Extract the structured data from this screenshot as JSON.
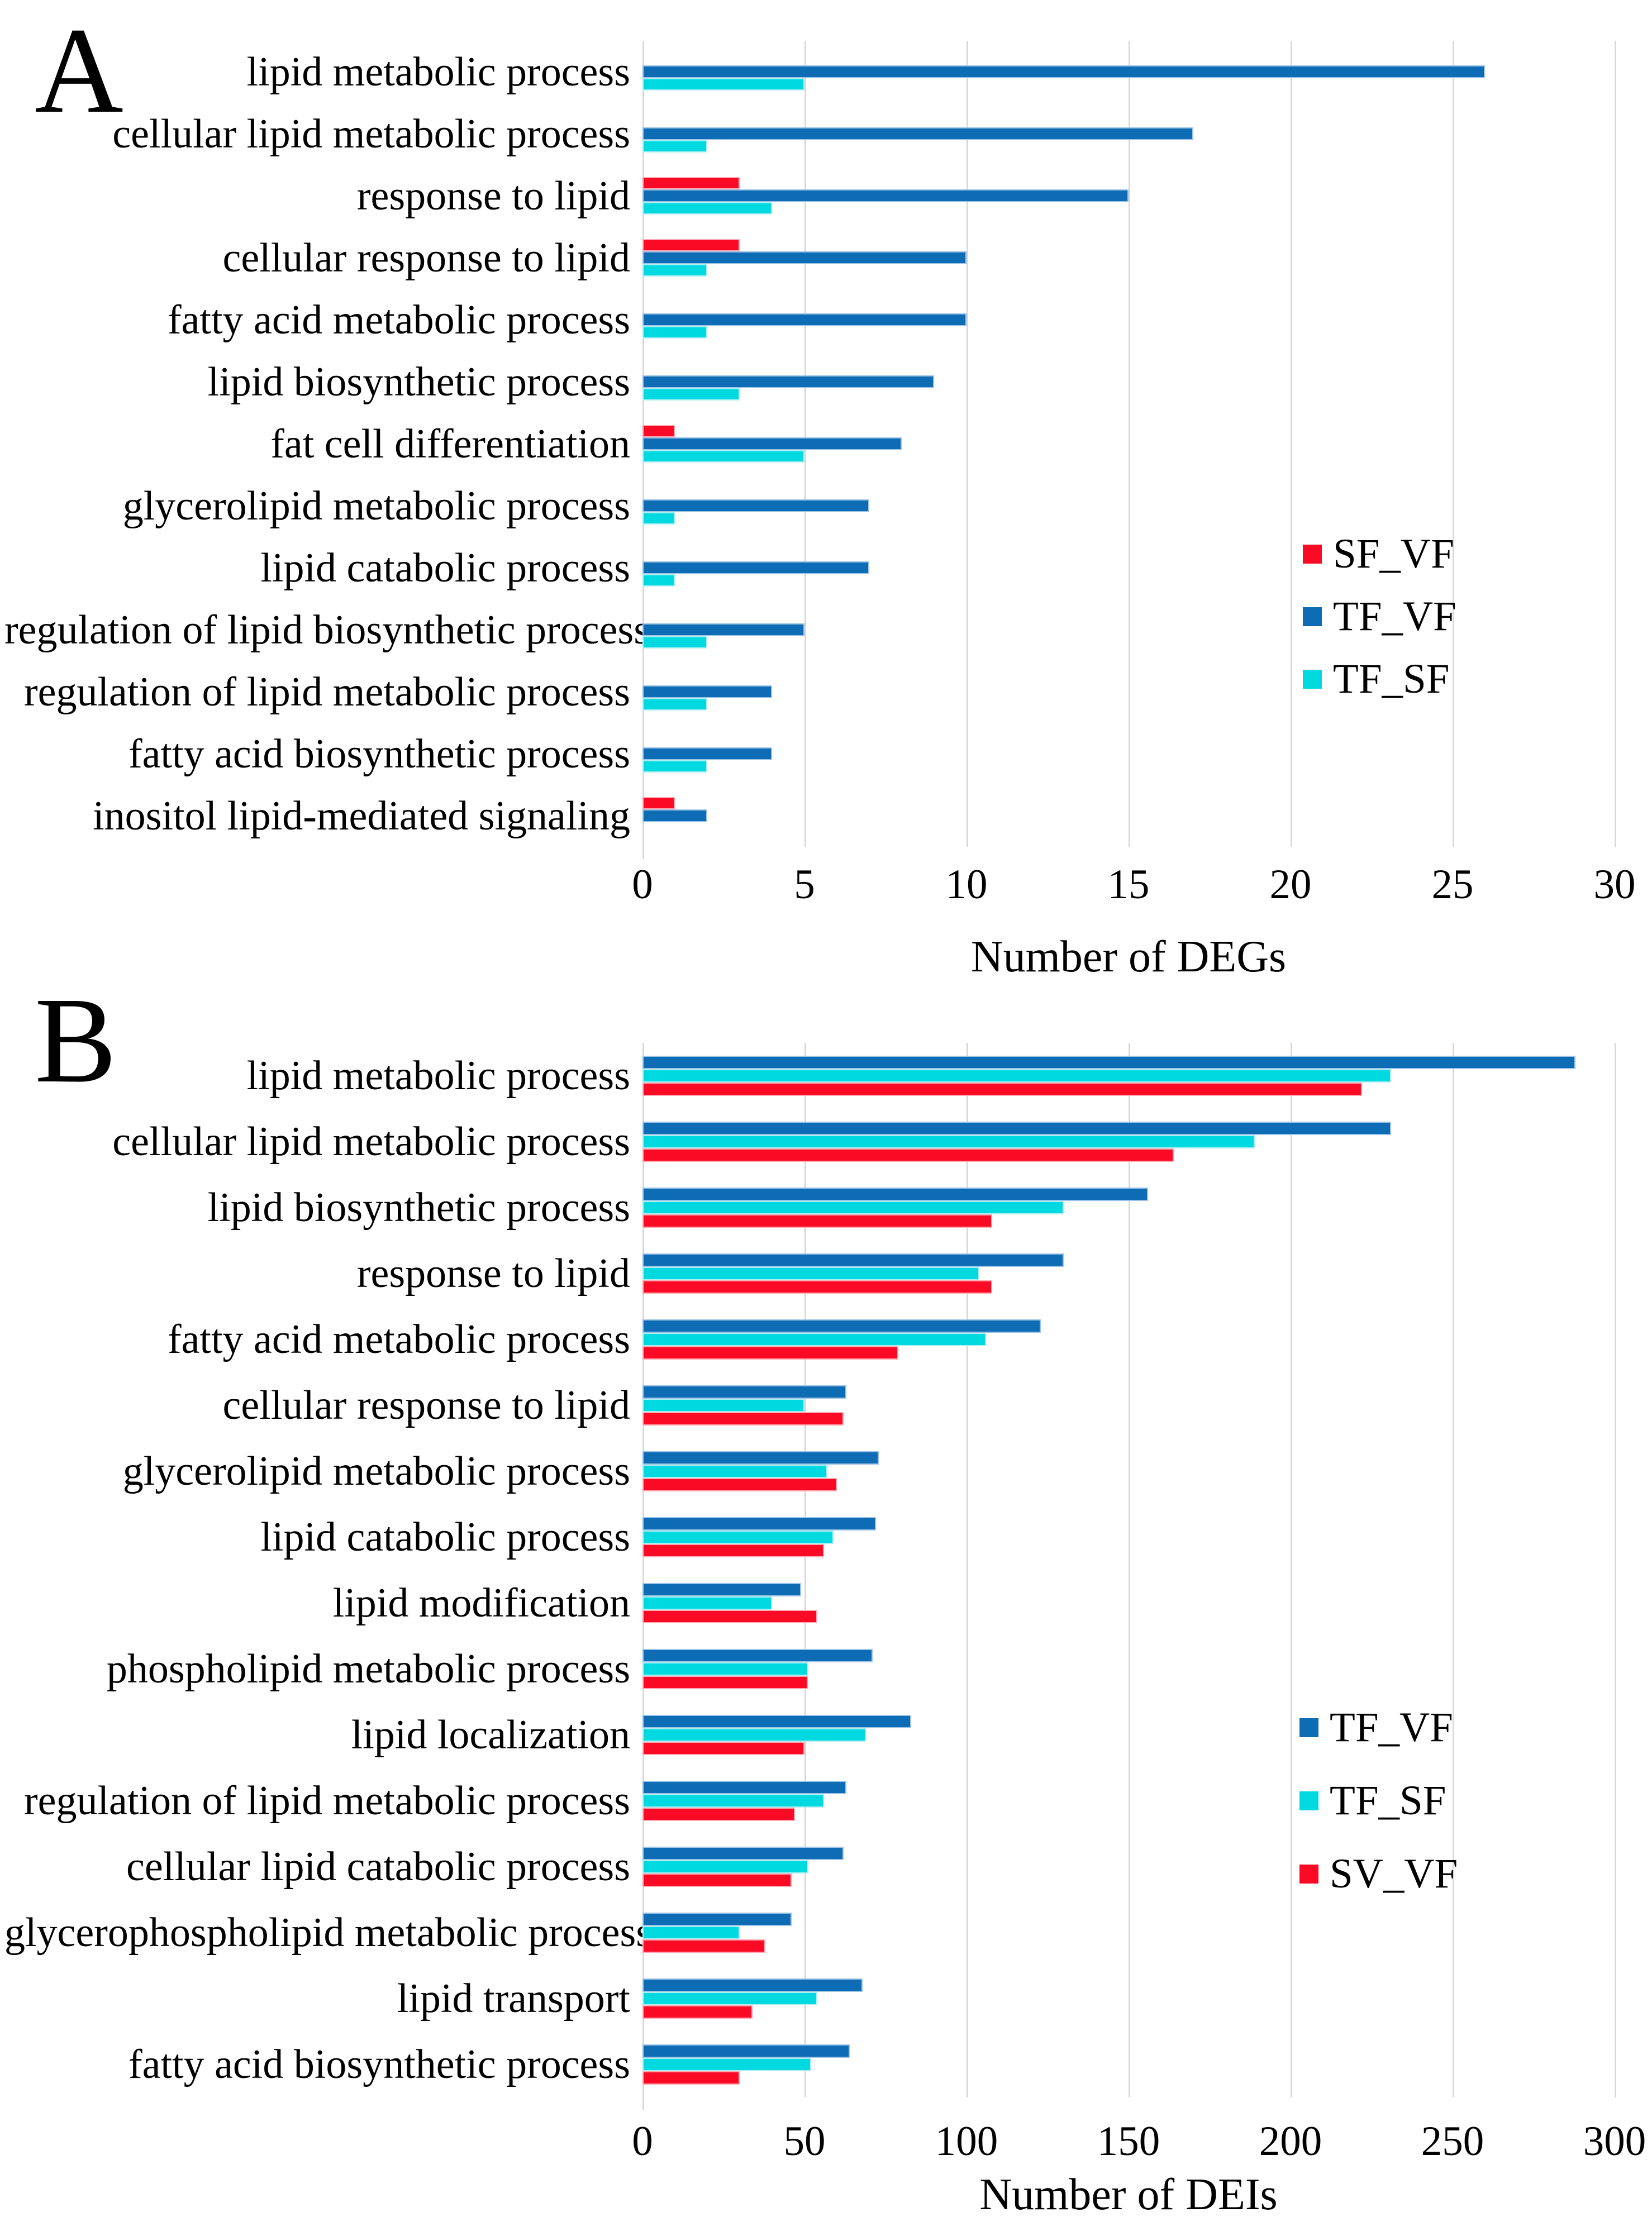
{
  "colors": {
    "TF_VF": "#0e6cb4",
    "TF_SF": "#00d9e0",
    "SF_VF": "#fb0a26",
    "SV_VF": "#fb0a26",
    "gridline": "#d9d9d9"
  },
  "chart_data": [
    {
      "type": "bar",
      "orientation": "horizontal",
      "panel_label": "A",
      "xlabel": "Number of DEGs",
      "xlim": [
        0,
        30
      ],
      "x_ticks": [
        0,
        5,
        10,
        15,
        20,
        25,
        30
      ],
      "grid": "vertical-light-gray",
      "legend_position": "right-middle",
      "bar_order_top_to_bottom": [
        "SF_VF",
        "TF_VF",
        "TF_SF"
      ],
      "legend": [
        {
          "label": "SF_VF",
          "color": "#fb0a26"
        },
        {
          "label": "TF_VF",
          "color": "#0e6cb4"
        },
        {
          "label": "TF_SF",
          "color": "#00d9e0"
        }
      ],
      "categories": [
        "lipid metabolic process",
        "cellular lipid metabolic process",
        "response to lipid",
        "cellular response to lipid",
        "fatty acid metabolic process",
        "lipid biosynthetic process",
        "fat cell differentiation",
        "glycerolipid metabolic process",
        "lipid catabolic process",
        "regulation of lipid biosynthetic process",
        "regulation of lipid metabolic process",
        "fatty acid biosynthetic process",
        "inositol lipid-mediated signaling"
      ],
      "series": [
        {
          "name": "SF_VF",
          "values": [
            0,
            0,
            3,
            3,
            0,
            0,
            1,
            0,
            0,
            0,
            0,
            0,
            1
          ]
        },
        {
          "name": "TF_VF",
          "values": [
            26,
            17,
            15,
            10,
            10,
            9,
            8,
            7,
            7,
            5,
            4,
            4,
            2
          ]
        },
        {
          "name": "TF_SF",
          "values": [
            5,
            2,
            4,
            2,
            2,
            3,
            5,
            1,
            1,
            2,
            2,
            2,
            0
          ]
        }
      ]
    },
    {
      "type": "bar",
      "orientation": "horizontal",
      "panel_label": "B",
      "xlabel": "Number of DEIs",
      "xlim": [
        0,
        300
      ],
      "x_ticks": [
        0,
        50,
        100,
        150,
        200,
        250,
        300
      ],
      "grid": "vertical-light-gray",
      "legend_position": "right-middle",
      "bar_order_top_to_bottom": [
        "TF_VF",
        "TF_SF",
        "SV_VF"
      ],
      "legend": [
        {
          "label": "TF_VF",
          "color": "#0e6cb4"
        },
        {
          "label": "TF_SF",
          "color": "#00d9e0"
        },
        {
          "label": "SV_VF",
          "color": "#fb0a26"
        }
      ],
      "categories": [
        "lipid metabolic process",
        "cellular lipid metabolic process",
        "lipid biosynthetic process",
        "response to lipid",
        "fatty acid metabolic process",
        "cellular response to lipid",
        "glycerolipid metabolic process",
        "lipid catabolic process",
        "lipid modification",
        "phospholipid metabolic process",
        "lipid localization",
        "regulation of lipid metabolic process",
        "cellular lipid catabolic process",
        "glycerophospholipid metabolic process",
        "lipid transport",
        "fatty acid biosynthetic process"
      ],
      "series": [
        {
          "name": "TF_VF",
          "values": [
            288,
            231,
            156,
            130,
            123,
            63,
            73,
            72,
            49,
            71,
            83,
            63,
            62,
            46,
            68,
            64
          ]
        },
        {
          "name": "TF_SF",
          "values": [
            231,
            189,
            130,
            104,
            106,
            50,
            57,
            59,
            40,
            51,
            69,
            56,
            51,
            30,
            54,
            52
          ]
        },
        {
          "name": "SV_VF",
          "values": [
            222,
            164,
            108,
            108,
            79,
            62,
            60,
            56,
            54,
            51,
            50,
            47,
            46,
            38,
            34,
            30
          ]
        }
      ]
    }
  ]
}
